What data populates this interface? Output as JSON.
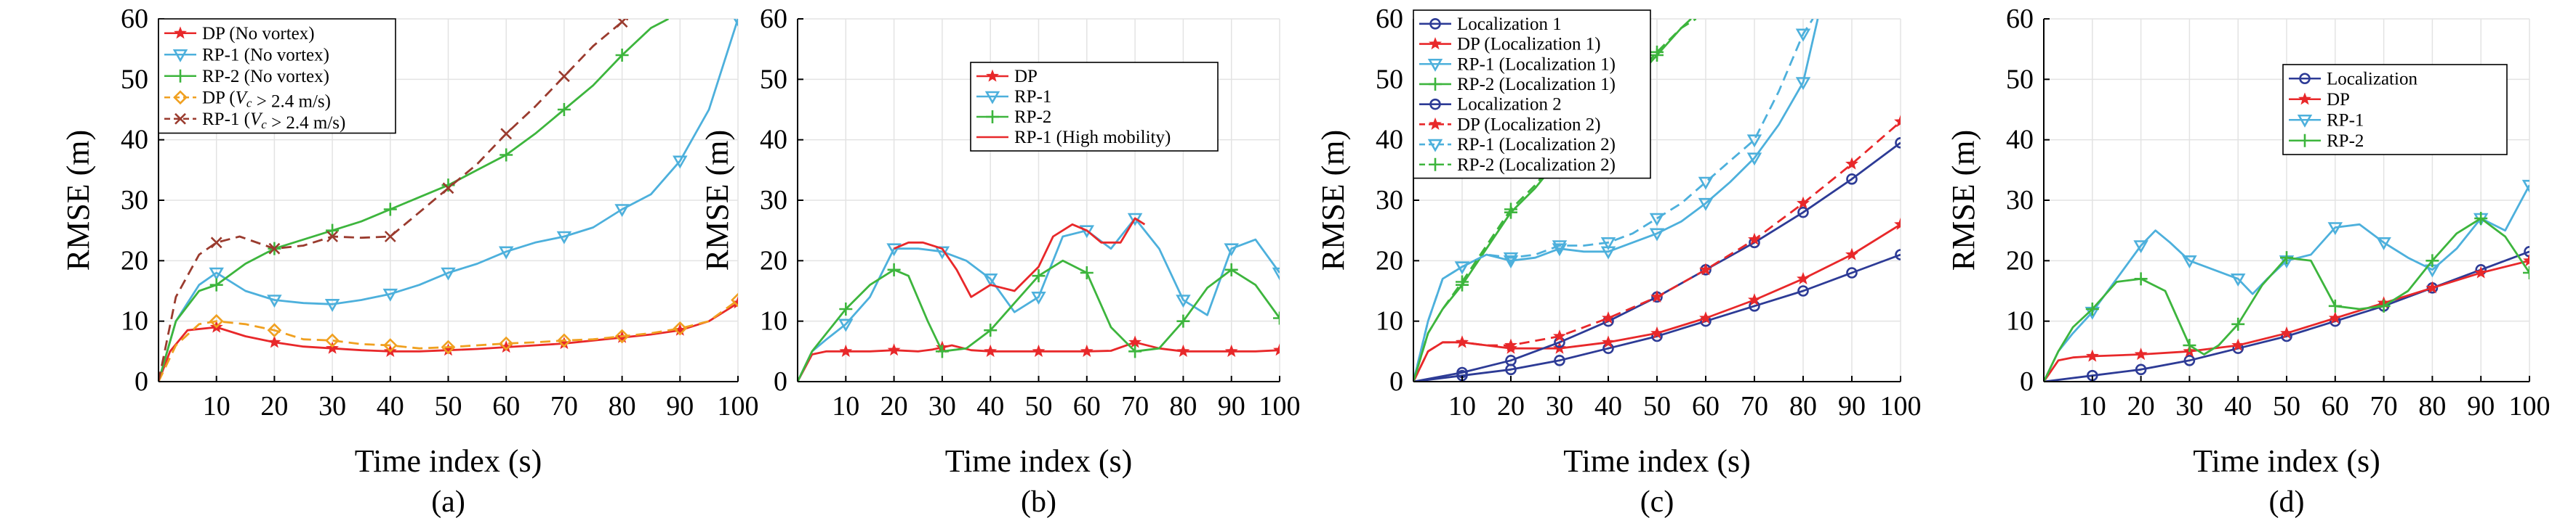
{
  "colors": {
    "DP": "#e8282a",
    "RP1": "#4db0dc",
    "RP2": "#3db53d",
    "dark_red": "#9a3b2e",
    "orange": "#f0a020",
    "navy": "#2d3b96"
  },
  "chart_data": [
    {
      "type": "line",
      "panel_label": "(a)",
      "xlabel": "Time index (s)",
      "ylabel": "RMSE (m)",
      "xlim": [
        0,
        100
      ],
      "ylim": [
        0,
        60
      ],
      "xticks": [
        10,
        20,
        30,
        40,
        50,
        60,
        70,
        80,
        90,
        100
      ],
      "yticks": [
        0,
        10,
        20,
        30,
        40,
        50,
        60
      ],
      "grid": true,
      "legend_position": "top-left",
      "series": [
        {
          "name": "DP (No vortex)",
          "color": "#e8282a",
          "dash": "solid",
          "marker": "star",
          "x": [
            0,
            2,
            5,
            10,
            15,
            20,
            25,
            30,
            35,
            40,
            45,
            50,
            55,
            60,
            65,
            70,
            75,
            80,
            85,
            90,
            95,
            100
          ],
          "y": [
            0,
            5,
            8.5,
            9,
            7.5,
            6.5,
            5.8,
            5.5,
            5.2,
            5,
            5,
            5.2,
            5.4,
            5.7,
            6,
            6.3,
            6.8,
            7.3,
            7.8,
            8.5,
            10,
            13
          ]
        },
        {
          "name": "RP-1 (No vortex)",
          "color": "#4db0dc",
          "dash": "solid",
          "marker": "triangle-down",
          "x": [
            0,
            3,
            7,
            10,
            15,
            20,
            25,
            30,
            35,
            40,
            45,
            50,
            55,
            60,
            65,
            70,
            75,
            80,
            85,
            90,
            95,
            100
          ],
          "y": [
            0,
            10,
            16,
            18,
            15,
            13.5,
            13,
            12.8,
            13.5,
            14.5,
            16,
            18,
            19.5,
            21.5,
            23,
            24,
            25.5,
            28.5,
            31,
            36.5,
            45,
            60
          ]
        },
        {
          "name": "RP-2 (No vortex)",
          "color": "#3db53d",
          "dash": "solid",
          "marker": "plus",
          "x": [
            0,
            3,
            7,
            10,
            15,
            20,
            25,
            30,
            35,
            40,
            45,
            50,
            55,
            60,
            65,
            70,
            75,
            80,
            85,
            88
          ],
          "y": [
            0,
            10,
            15,
            16,
            19.5,
            22,
            23.5,
            25,
            26.5,
            28.5,
            30.5,
            32.5,
            35,
            37.5,
            41,
            45,
            49,
            54,
            58.5,
            60
          ]
        },
        {
          "name": "DP (V_c > 2.4 m/s)",
          "color": "#f0a020",
          "dash": "dashed",
          "marker": "diamond",
          "x": [
            0,
            3,
            7,
            10,
            15,
            20,
            25,
            30,
            35,
            40,
            45,
            50,
            55,
            60,
            65,
            70,
            75,
            80,
            85,
            90,
            95,
            100
          ],
          "y": [
            0,
            6,
            9.5,
            10,
            9.5,
            8.5,
            7,
            6.8,
            6.2,
            6,
            5.5,
            5.7,
            6,
            6.3,
            6.5,
            6.8,
            7,
            7.5,
            8,
            8.8,
            10,
            13.5
          ]
        },
        {
          "name": "RP-1 (V_c > 2.4 m/s)",
          "color": "#9a3b2e",
          "dash": "dashed",
          "marker": "x",
          "x": [
            0,
            3,
            7,
            10,
            14,
            20,
            25,
            30,
            35,
            40,
            45,
            50,
            55,
            60,
            65,
            70,
            75,
            80,
            81
          ],
          "y": [
            0,
            14,
            21,
            23,
            24,
            22,
            22.5,
            24,
            23.8,
            24,
            28,
            32,
            36,
            41,
            45.5,
            50.5,
            55.5,
            59.5,
            60
          ]
        }
      ]
    },
    {
      "type": "line",
      "panel_label": "(b)",
      "xlabel": "Time index (s)",
      "ylabel": "RMSE (m)",
      "xlim": [
        0,
        100
      ],
      "ylim": [
        0,
        60
      ],
      "xticks": [
        10,
        20,
        30,
        40,
        50,
        60,
        70,
        80,
        90,
        100
      ],
      "yticks": [
        0,
        10,
        20,
        30,
        40,
        50,
        60
      ],
      "grid": true,
      "legend_position": "top-right",
      "series": [
        {
          "name": "DP",
          "color": "#e8282a",
          "dash": "solid",
          "marker": "star",
          "x": [
            0,
            3,
            6,
            10,
            15,
            20,
            25,
            28,
            32,
            36,
            40,
            45,
            50,
            55,
            60,
            65,
            70,
            75,
            80,
            85,
            90,
            95,
            100
          ],
          "y": [
            0,
            4.5,
            5,
            5,
            5,
            5.2,
            5,
            5.3,
            6,
            5.2,
            5,
            5,
            5,
            5,
            5,
            5.1,
            6.5,
            5.5,
            5,
            5,
            5,
            5,
            5.2
          ]
        },
        {
          "name": "RP-1",
          "color": "#4db0dc",
          "dash": "solid",
          "marker": "triangle-down",
          "x": [
            0,
            3,
            6,
            10,
            15,
            20,
            25,
            30,
            35,
            40,
            45,
            50,
            55,
            60,
            65,
            70,
            75,
            80,
            85,
            90,
            95,
            100
          ],
          "y": [
            0,
            5,
            7,
            9.5,
            14,
            22,
            22,
            21.5,
            20,
            17,
            11.5,
            14,
            24,
            25,
            22,
            27,
            22,
            13.5,
            11,
            22,
            23.5,
            18
          ]
        },
        {
          "name": "RP-2",
          "color": "#3db53d",
          "dash": "solid",
          "marker": "plus",
          "x": [
            0,
            3,
            6,
            10,
            15,
            20,
            23,
            27,
            30,
            35,
            40,
            45,
            50,
            55,
            60,
            65,
            70,
            75,
            80,
            85,
            90,
            95,
            100
          ],
          "y": [
            0,
            5,
            8,
            12,
            16,
            18.5,
            17.5,
            10,
            5,
            5.5,
            8.5,
            13,
            17.5,
            20,
            18,
            9,
            5,
            5.5,
            10,
            15.5,
            18.5,
            16,
            10.5
          ]
        },
        {
          "name": "RP-1 (High mobility)",
          "color": "#e8282a",
          "dash": "solid",
          "marker": "none",
          "x": [
            20,
            23,
            26,
            30,
            33,
            36,
            40,
            45,
            50,
            53,
            57,
            60,
            63,
            67,
            70,
            72
          ],
          "y": [
            22,
            23,
            23,
            22,
            18.5,
            14,
            16,
            15,
            19,
            24,
            26,
            25,
            23,
            23,
            27,
            26
          ]
        }
      ]
    },
    {
      "type": "line",
      "panel_label": "(c)",
      "xlabel": "Time index (s)",
      "ylabel": "RMSE (m)",
      "xlim": [
        0,
        100
      ],
      "ylim": [
        0,
        60
      ],
      "xticks": [
        10,
        20,
        30,
        40,
        50,
        60,
        70,
        80,
        90,
        100
      ],
      "yticks": [
        0,
        10,
        20,
        30,
        40,
        50,
        60
      ],
      "grid": true,
      "legend_position": "top-left",
      "series": [
        {
          "name": "Localization 1",
          "color": "#2d3b96",
          "dash": "solid",
          "marker": "circle",
          "x": [
            0,
            10,
            20,
            30,
            40,
            50,
            60,
            70,
            80,
            90,
            100
          ],
          "y": [
            0,
            1,
            2,
            3.5,
            5.5,
            7.5,
            10,
            12.5,
            15,
            18,
            21
          ]
        },
        {
          "name": "DP (Localization 1)",
          "color": "#e8282a",
          "dash": "solid",
          "marker": "star",
          "x": [
            0,
            3,
            6,
            10,
            15,
            20,
            30,
            40,
            50,
            60,
            70,
            80,
            90,
            100
          ],
          "y": [
            0,
            5,
            6.5,
            6.5,
            6,
            5.5,
            5.5,
            6.5,
            8,
            10.5,
            13.5,
            17,
            21,
            26
          ]
        },
        {
          "name": "RP-1 (Localization 1)",
          "color": "#4db0dc",
          "dash": "solid",
          "marker": "triangle-down",
          "x": [
            0,
            3,
            6,
            10,
            15,
            20,
            25,
            30,
            35,
            40,
            45,
            50,
            55,
            60,
            65,
            70,
            75,
            80,
            83
          ],
          "y": [
            0,
            10,
            17,
            19,
            21,
            20,
            20.5,
            22,
            21.5,
            21.5,
            23,
            24.5,
            26.5,
            29.5,
            33,
            37,
            42.5,
            49.5,
            60
          ]
        },
        {
          "name": "RP-2 (Localization 1)",
          "color": "#3db53d",
          "dash": "solid",
          "marker": "plus",
          "x": [
            0,
            3,
            6,
            10,
            15,
            20,
            25,
            30,
            35,
            40,
            45,
            50,
            55,
            57
          ],
          "y": [
            0,
            8,
            12,
            16,
            22,
            28,
            32,
            37,
            41,
            45,
            49.5,
            54,
            58.5,
            60
          ]
        },
        {
          "name": "Localization 2",
          "color": "#2d3b96",
          "dash": "solid",
          "marker": "circle",
          "x": [
            0,
            10,
            20,
            30,
            40,
            50,
            60,
            70,
            80,
            90,
            100
          ],
          "y": [
            0,
            1.5,
            3.5,
            6.5,
            10,
            14,
            18.5,
            23,
            28,
            33.5,
            39.5
          ]
        },
        {
          "name": "DP (Localization 2)",
          "color": "#e8282a",
          "dash": "dashed",
          "marker": "star",
          "x": [
            0,
            3,
            6,
            10,
            15,
            20,
            30,
            40,
            50,
            60,
            70,
            80,
            90,
            100
          ],
          "y": [
            0,
            5,
            6.5,
            6.5,
            6,
            6,
            7.5,
            10.5,
            14,
            18.5,
            23.5,
            29.5,
            36,
            43
          ]
        },
        {
          "name": "RP-1 (Localization 2)",
          "color": "#4db0dc",
          "dash": "dashed",
          "marker": "triangle-down",
          "x": [
            0,
            3,
            6,
            10,
            15,
            20,
            25,
            30,
            35,
            40,
            45,
            50,
            55,
            60,
            65,
            70,
            75,
            80,
            82
          ],
          "y": [
            0,
            10,
            17,
            19,
            21,
            20.5,
            21,
            22.5,
            22.5,
            23,
            24.5,
            27,
            29.5,
            33,
            36.5,
            40,
            48,
            57.5,
            60
          ]
        },
        {
          "name": "RP-2 (Localization 2)",
          "color": "#3db53d",
          "dash": "dashed",
          "marker": "plus",
          "x": [
            0,
            3,
            6,
            10,
            15,
            20,
            25,
            30,
            35,
            40,
            45,
            50,
            55,
            58
          ],
          "y": [
            0,
            8,
            12,
            16.5,
            22.5,
            28.5,
            32.5,
            37.5,
            41.5,
            45.5,
            50,
            54.5,
            58.5,
            60
          ]
        }
      ]
    },
    {
      "type": "line",
      "panel_label": "(d)",
      "xlabel": "Time index (s)",
      "ylabel": "RMSE (m)",
      "xlim": [
        0,
        100
      ],
      "ylim": [
        0,
        60
      ],
      "xticks": [
        10,
        20,
        30,
        40,
        50,
        60,
        70,
        80,
        90,
        100
      ],
      "yticks": [
        0,
        10,
        20,
        30,
        40,
        50,
        60
      ],
      "grid": true,
      "legend_position": "top-right",
      "series": [
        {
          "name": "Localization",
          "color": "#2d3b96",
          "dash": "solid",
          "marker": "circle",
          "x": [
            0,
            10,
            20,
            30,
            40,
            50,
            60,
            70,
            80,
            90,
            100
          ],
          "y": [
            0,
            1,
            2,
            3.5,
            5.5,
            7.5,
            10,
            12.5,
            15.5,
            18.5,
            21.5
          ]
        },
        {
          "name": "DP",
          "color": "#e8282a",
          "dash": "solid",
          "marker": "star",
          "x": [
            0,
            3,
            6,
            10,
            20,
            30,
            40,
            50,
            60,
            70,
            80,
            90,
            100
          ],
          "y": [
            0,
            3.5,
            4,
            4.2,
            4.5,
            5,
            6,
            8,
            10.5,
            13,
            15.5,
            18,
            20
          ]
        },
        {
          "name": "RP-1",
          "color": "#4db0dc",
          "dash": "solid",
          "marker": "triangle-down",
          "x": [
            0,
            3,
            6,
            10,
            15,
            20,
            23,
            26,
            30,
            35,
            40,
            43,
            46,
            50,
            55,
            60,
            65,
            70,
            75,
            80,
            85,
            90,
            95,
            100
          ],
          "y": [
            0,
            5,
            8,
            11.5,
            17,
            22.5,
            25,
            23,
            20,
            18.5,
            17,
            14.5,
            17,
            20,
            21,
            25.5,
            26,
            23,
            20.5,
            18.5,
            22,
            27,
            25,
            32.5
          ]
        },
        {
          "name": "RP-2",
          "color": "#3db53d",
          "dash": "solid",
          "marker": "plus",
          "x": [
            0,
            3,
            6,
            10,
            15,
            20,
            25,
            30,
            33,
            36,
            40,
            45,
            50,
            55,
            60,
            65,
            70,
            75,
            80,
            85,
            90,
            95,
            100
          ],
          "y": [
            0,
            5,
            9,
            12,
            16.5,
            17,
            15,
            6,
            4.5,
            6,
            9.5,
            16,
            20.5,
            20,
            12.5,
            12,
            12.5,
            15,
            20,
            24.5,
            27,
            24,
            18
          ]
        }
      ]
    }
  ]
}
